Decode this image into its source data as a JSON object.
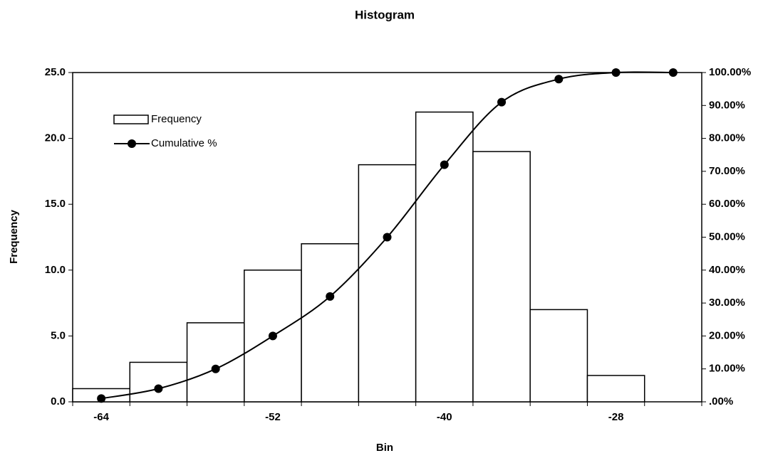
{
  "chart_data": {
    "type": "bar",
    "title": "Histogram",
    "x_label": "Bin",
    "y_label": "Frequency",
    "categories": [
      "-64",
      null,
      null,
      "-52",
      null,
      null,
      "-40",
      null,
      null,
      "-28",
      null
    ],
    "series": [
      {
        "name": "Frequency",
        "color": "#ffffff",
        "values": [
          1,
          3,
          6,
          10,
          12,
          18,
          22,
          19,
          7,
          2,
          0
        ]
      },
      {
        "name": "Cumulative %",
        "type": "line",
        "axis": "y2",
        "color": "#000000",
        "values": [
          1,
          4,
          10,
          20,
          32,
          50,
          72,
          91,
          98,
          100,
          100
        ]
      }
    ],
    "ylim": [
      0,
      25
    ],
    "yticks": [
      {
        "value": 0,
        "label": "0.0"
      },
      {
        "value": 5,
        "label": "5.0"
      },
      {
        "value": 10,
        "label": "10.0"
      },
      {
        "value": 15,
        "label": "15.0"
      },
      {
        "value": 20,
        "label": "20.0"
      },
      {
        "value": 25,
        "label": "25.0"
      }
    ],
    "y2lim": [
      0,
      100
    ],
    "y2ticks": [
      {
        "value": 0,
        "label": ".00%"
      },
      {
        "value": 10,
        "label": "10.00%"
      },
      {
        "value": 20,
        "label": "20.00%"
      },
      {
        "value": 30,
        "label": "30.00%"
      },
      {
        "value": 40,
        "label": "40.00%"
      },
      {
        "value": 50,
        "label": "50.00%"
      },
      {
        "value": 60,
        "label": "60.00%"
      },
      {
        "value": 70,
        "label": "70.00%"
      },
      {
        "value": 80,
        "label": "80.00%"
      },
      {
        "value": 90,
        "label": "90.00%"
      },
      {
        "value": 100,
        "label": "100.00%"
      }
    ],
    "legend": "upper left"
  }
}
